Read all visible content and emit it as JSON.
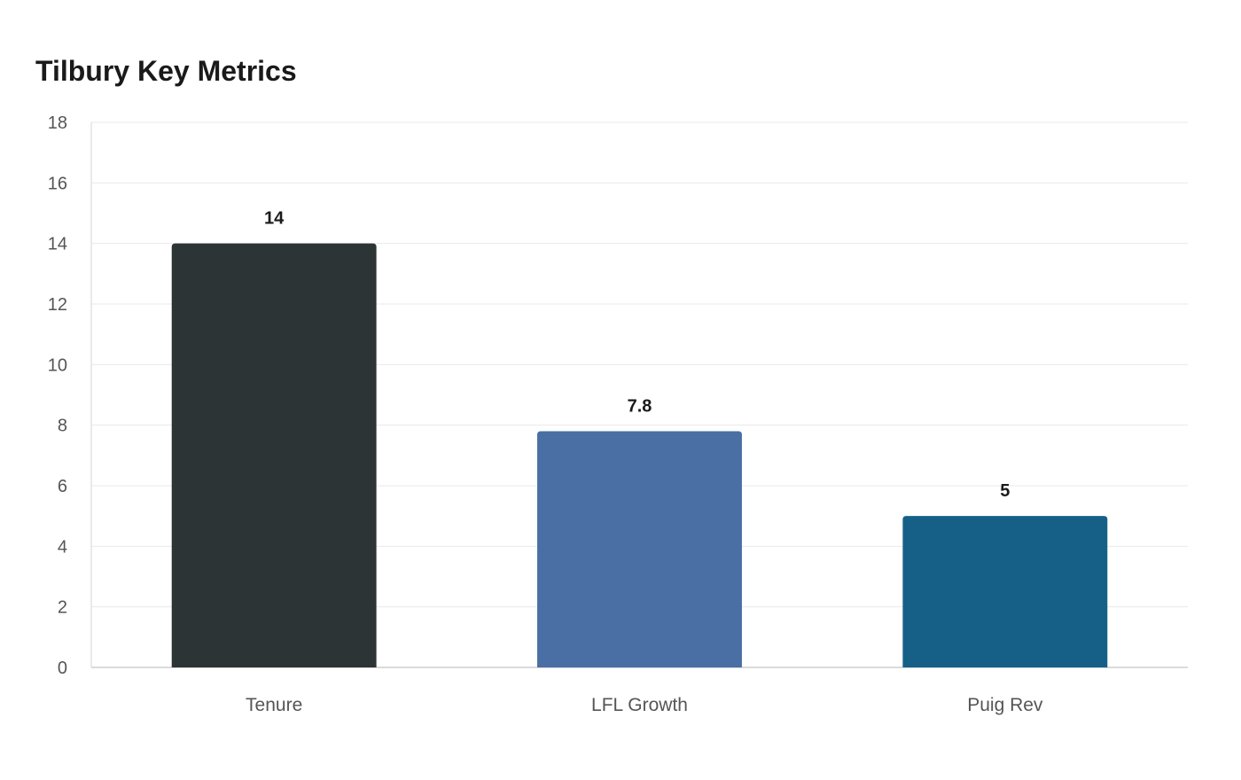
{
  "chart_data": {
    "type": "bar",
    "title": "Tilbury Key Metrics",
    "categories": [
      "Tenure",
      "LFL Growth",
      "Puig Rev"
    ],
    "values": [
      14,
      7.8,
      5
    ],
    "data_labels": [
      "14",
      "7.8",
      "5"
    ],
    "colors": [
      "#2d3436",
      "#4a6fa5",
      "#166088"
    ],
    "ylim": [
      0,
      18
    ],
    "y_ticks": [
      0,
      2,
      4,
      6,
      8,
      10,
      12,
      14,
      16,
      18
    ],
    "xlabel": "",
    "ylabel": "",
    "grid": true,
    "legend": "none"
  }
}
